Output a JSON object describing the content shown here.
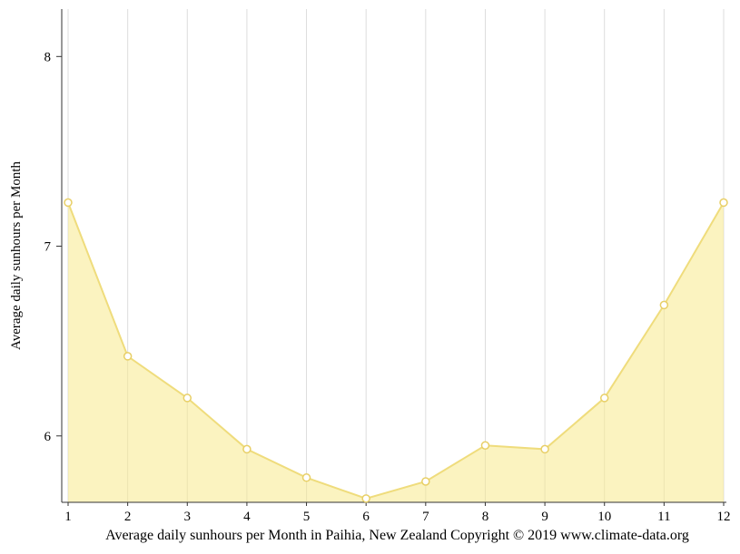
{
  "chart_data": {
    "type": "area",
    "x": [
      1,
      2,
      3,
      4,
      5,
      6,
      7,
      8,
      9,
      10,
      11,
      12
    ],
    "series": [
      {
        "name": "Average daily sunhours",
        "values": [
          7.23,
          6.42,
          6.2,
          5.93,
          5.78,
          5.67,
          5.76,
          5.95,
          5.93,
          6.2,
          6.69,
          7.23
        ]
      }
    ],
    "title": "Average daily sunhours per Month in Paihia, New Zealand Copyright © 2019 www.climate-data.org",
    "xlabel": "",
    "ylabel": "Average daily sunhours per Month",
    "ylim": [
      5.65,
      8.25
    ],
    "yticks": [
      6,
      7,
      8
    ],
    "grid": "vertical",
    "legend": false,
    "colors": {
      "area_fill": "#F7E98D",
      "area_opacity": 0.55,
      "line": "#EFDC7C",
      "marker_fill": "#FFFFFF",
      "marker_stroke": "#E8CF66",
      "gridline": "#DDDDDD",
      "axis": "#333333",
      "text": "#000000"
    }
  }
}
